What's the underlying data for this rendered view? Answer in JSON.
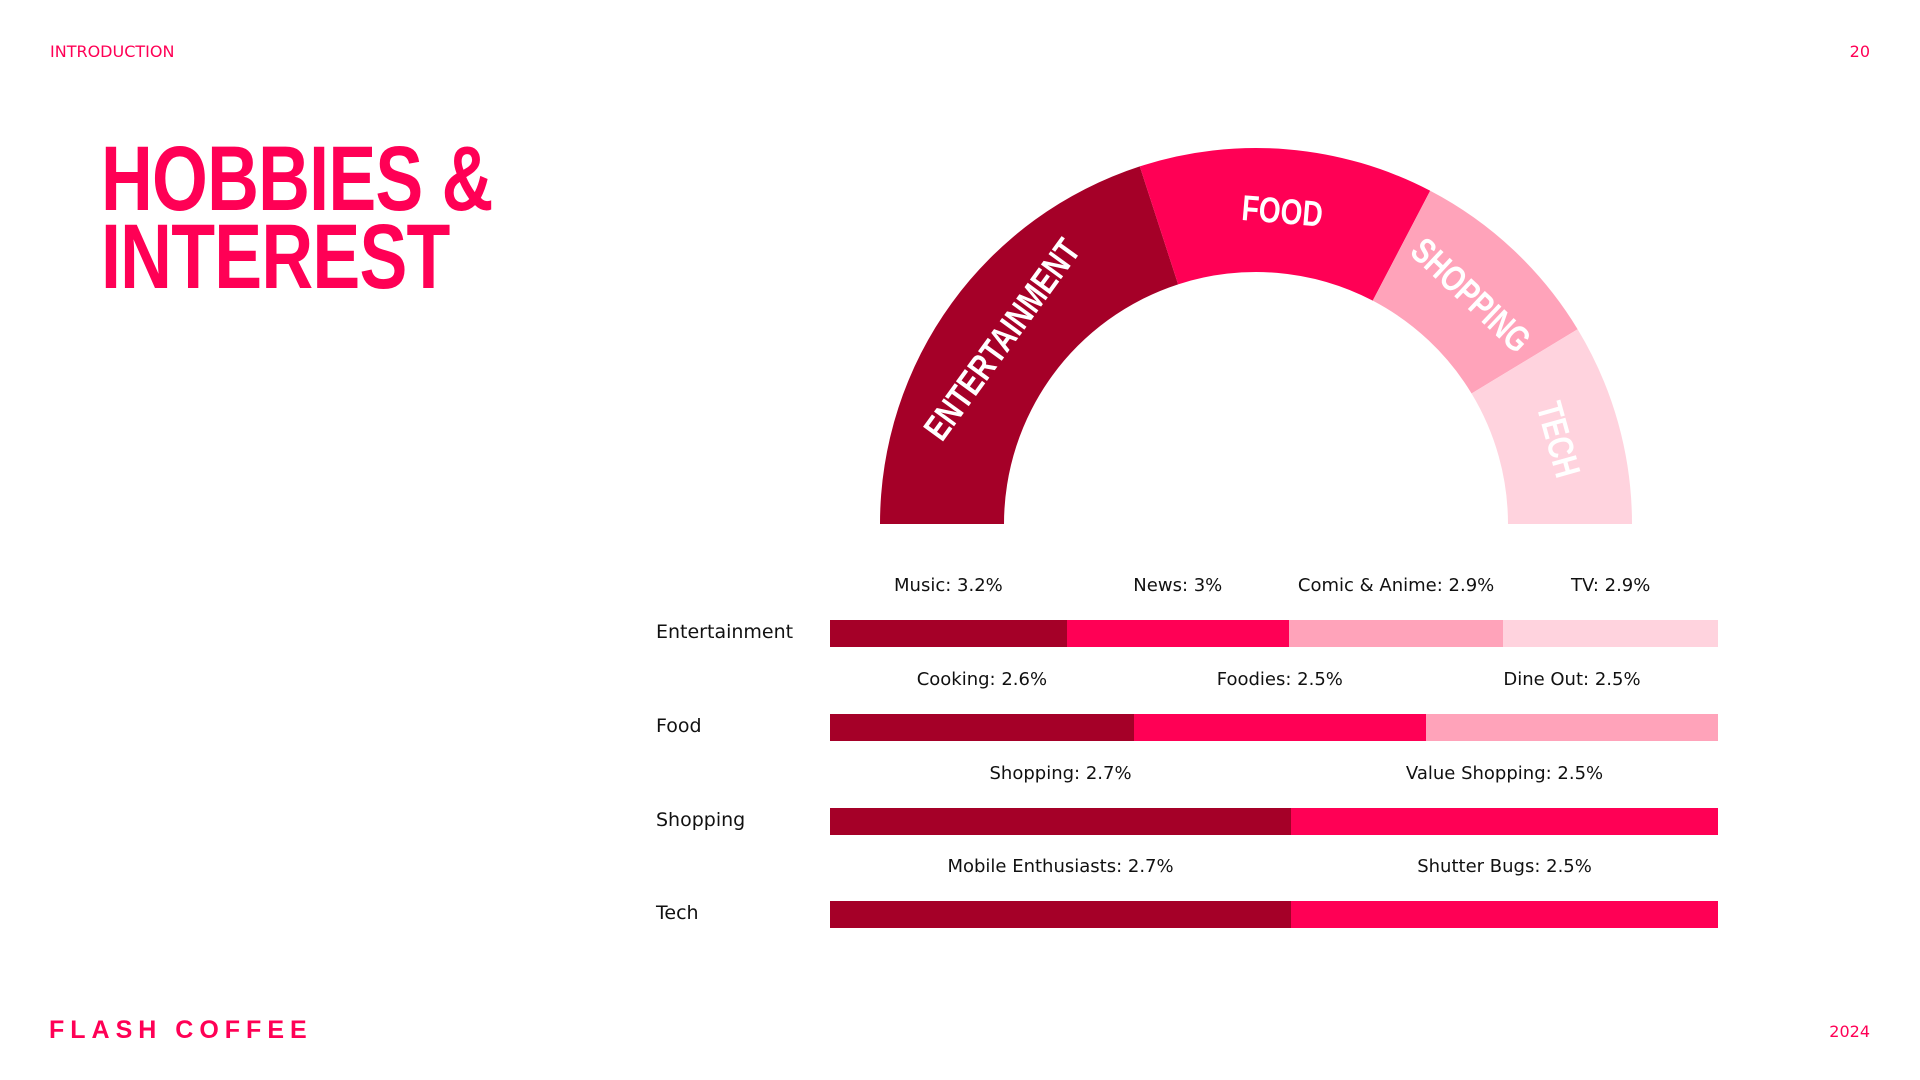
{
  "header": {
    "section": "INTRODUCTION",
    "page_number": "20"
  },
  "title": {
    "line1": "HOBBIES &",
    "line2": "INTEREST"
  },
  "footer": {
    "brand": "FLASH COFFEE",
    "year": "2024"
  },
  "colors": [
    "#A50028",
    "#FF0055",
    "#FFA3BA",
    "#FFD3DE"
  ],
  "chart_data": [
    {
      "type": "pie",
      "variant": "half-donut",
      "categories": [
        "ENTERTAINMENT",
        "FOOD",
        "SHOPPING",
        "TECH"
      ],
      "values": [
        12.0,
        7.6,
        5.2,
        5.2
      ]
    },
    {
      "type": "bar",
      "variant": "stacked-horizontal",
      "rows": [
        {
          "label": "Entertainment",
          "segments": [
            {
              "name": "Music",
              "value": 3.2,
              "text": "Music: 3.2%"
            },
            {
              "name": "News",
              "value": 3,
              "text": "News: 3%"
            },
            {
              "name": "Comic & Anime",
              "value": 2.9,
              "text": "Comic & Anime: 2.9%"
            },
            {
              "name": "TV",
              "value": 2.9,
              "text": "TV: 2.9%"
            }
          ]
        },
        {
          "label": "Food",
          "segments": [
            {
              "name": "Cooking",
              "value": 2.6,
              "text": "Cooking: 2.6%"
            },
            {
              "name": "Foodies",
              "value": 2.5,
              "text": "Foodies: 2.5%"
            },
            {
              "name": "Dine Out",
              "value": 2.5,
              "text": "Dine Out: 2.5%"
            }
          ]
        },
        {
          "label": "Shopping",
          "segments": [
            {
              "name": "Shopping",
              "value": 2.7,
              "text": "Shopping: 2.7%"
            },
            {
              "name": "Value Shopping",
              "value": 2.5,
              "text": "Value Shopping: 2.5%"
            }
          ]
        },
        {
          "label": "Tech",
          "segments": [
            {
              "name": "Mobile Enthusiasts",
              "value": 2.7,
              "text": "Mobile Enthusiasts: 2.7%"
            },
            {
              "name": "Shutter Bugs",
              "value": 2.5,
              "text": "Shutter Bugs: 2.5%"
            }
          ]
        }
      ]
    }
  ]
}
